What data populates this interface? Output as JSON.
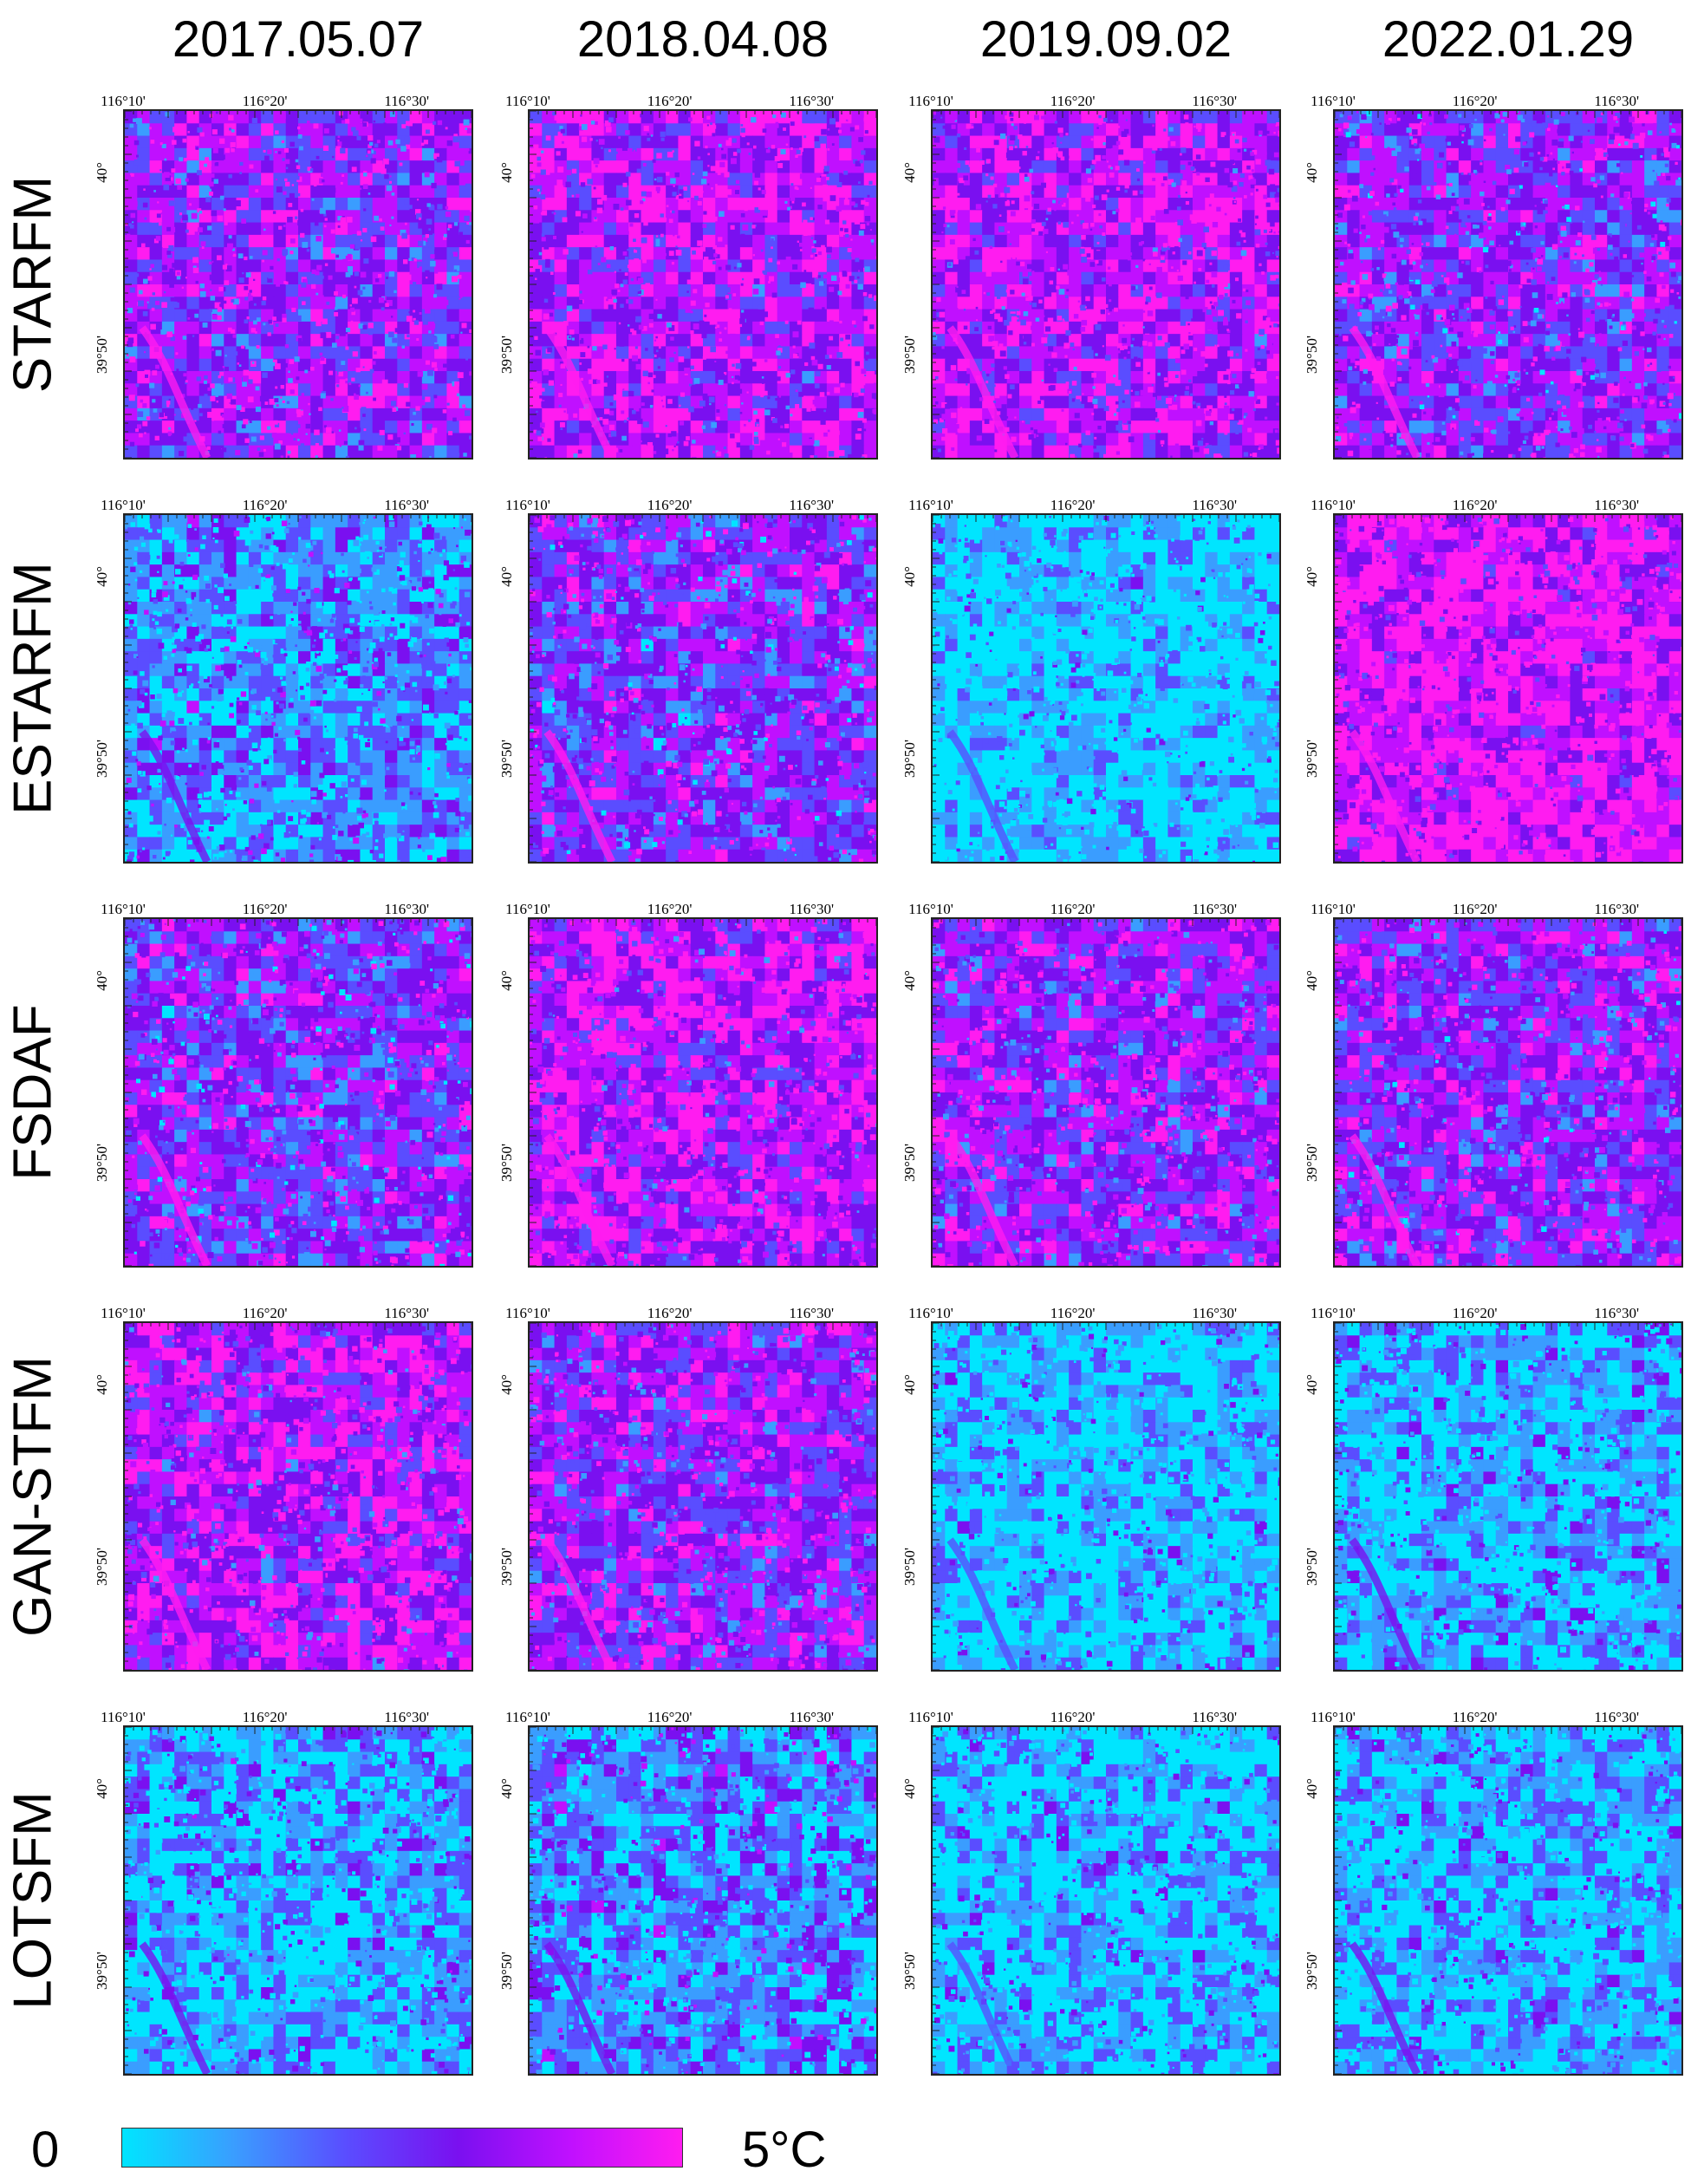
{
  "dates": [
    "2017.05.07",
    "2018.04.08",
    "2019.09.02",
    "2022.01.29"
  ],
  "methods": [
    {
      "name": "STARFM",
      "levels": [
        0.62,
        0.7,
        0.72,
        0.58
      ]
    },
    {
      "name": "ESTARFM",
      "levels": [
        0.3,
        0.55,
        0.12,
        0.82
      ]
    },
    {
      "name": "FSDAF",
      "levels": [
        0.55,
        0.72,
        0.62,
        0.6
      ]
    },
    {
      "name": "GAN-STFM",
      "levels": [
        0.7,
        0.62,
        0.15,
        0.2
      ]
    },
    {
      "name": "LOTSFM",
      "levels": [
        0.22,
        0.32,
        0.18,
        0.2
      ]
    }
  ],
  "lon_ticks": [
    "116°10'",
    "116°20'",
    "116°30'"
  ],
  "lat_ticks": [
    "40°",
    "39°50'"
  ],
  "legend": {
    "min_label": "0",
    "max_label": "5°C"
  },
  "colorscale": [
    "#00e5ff",
    "#3a9dff",
    "#5a4dff",
    "#7a10f0",
    "#c010ff",
    "#ff1cf0"
  ]
}
